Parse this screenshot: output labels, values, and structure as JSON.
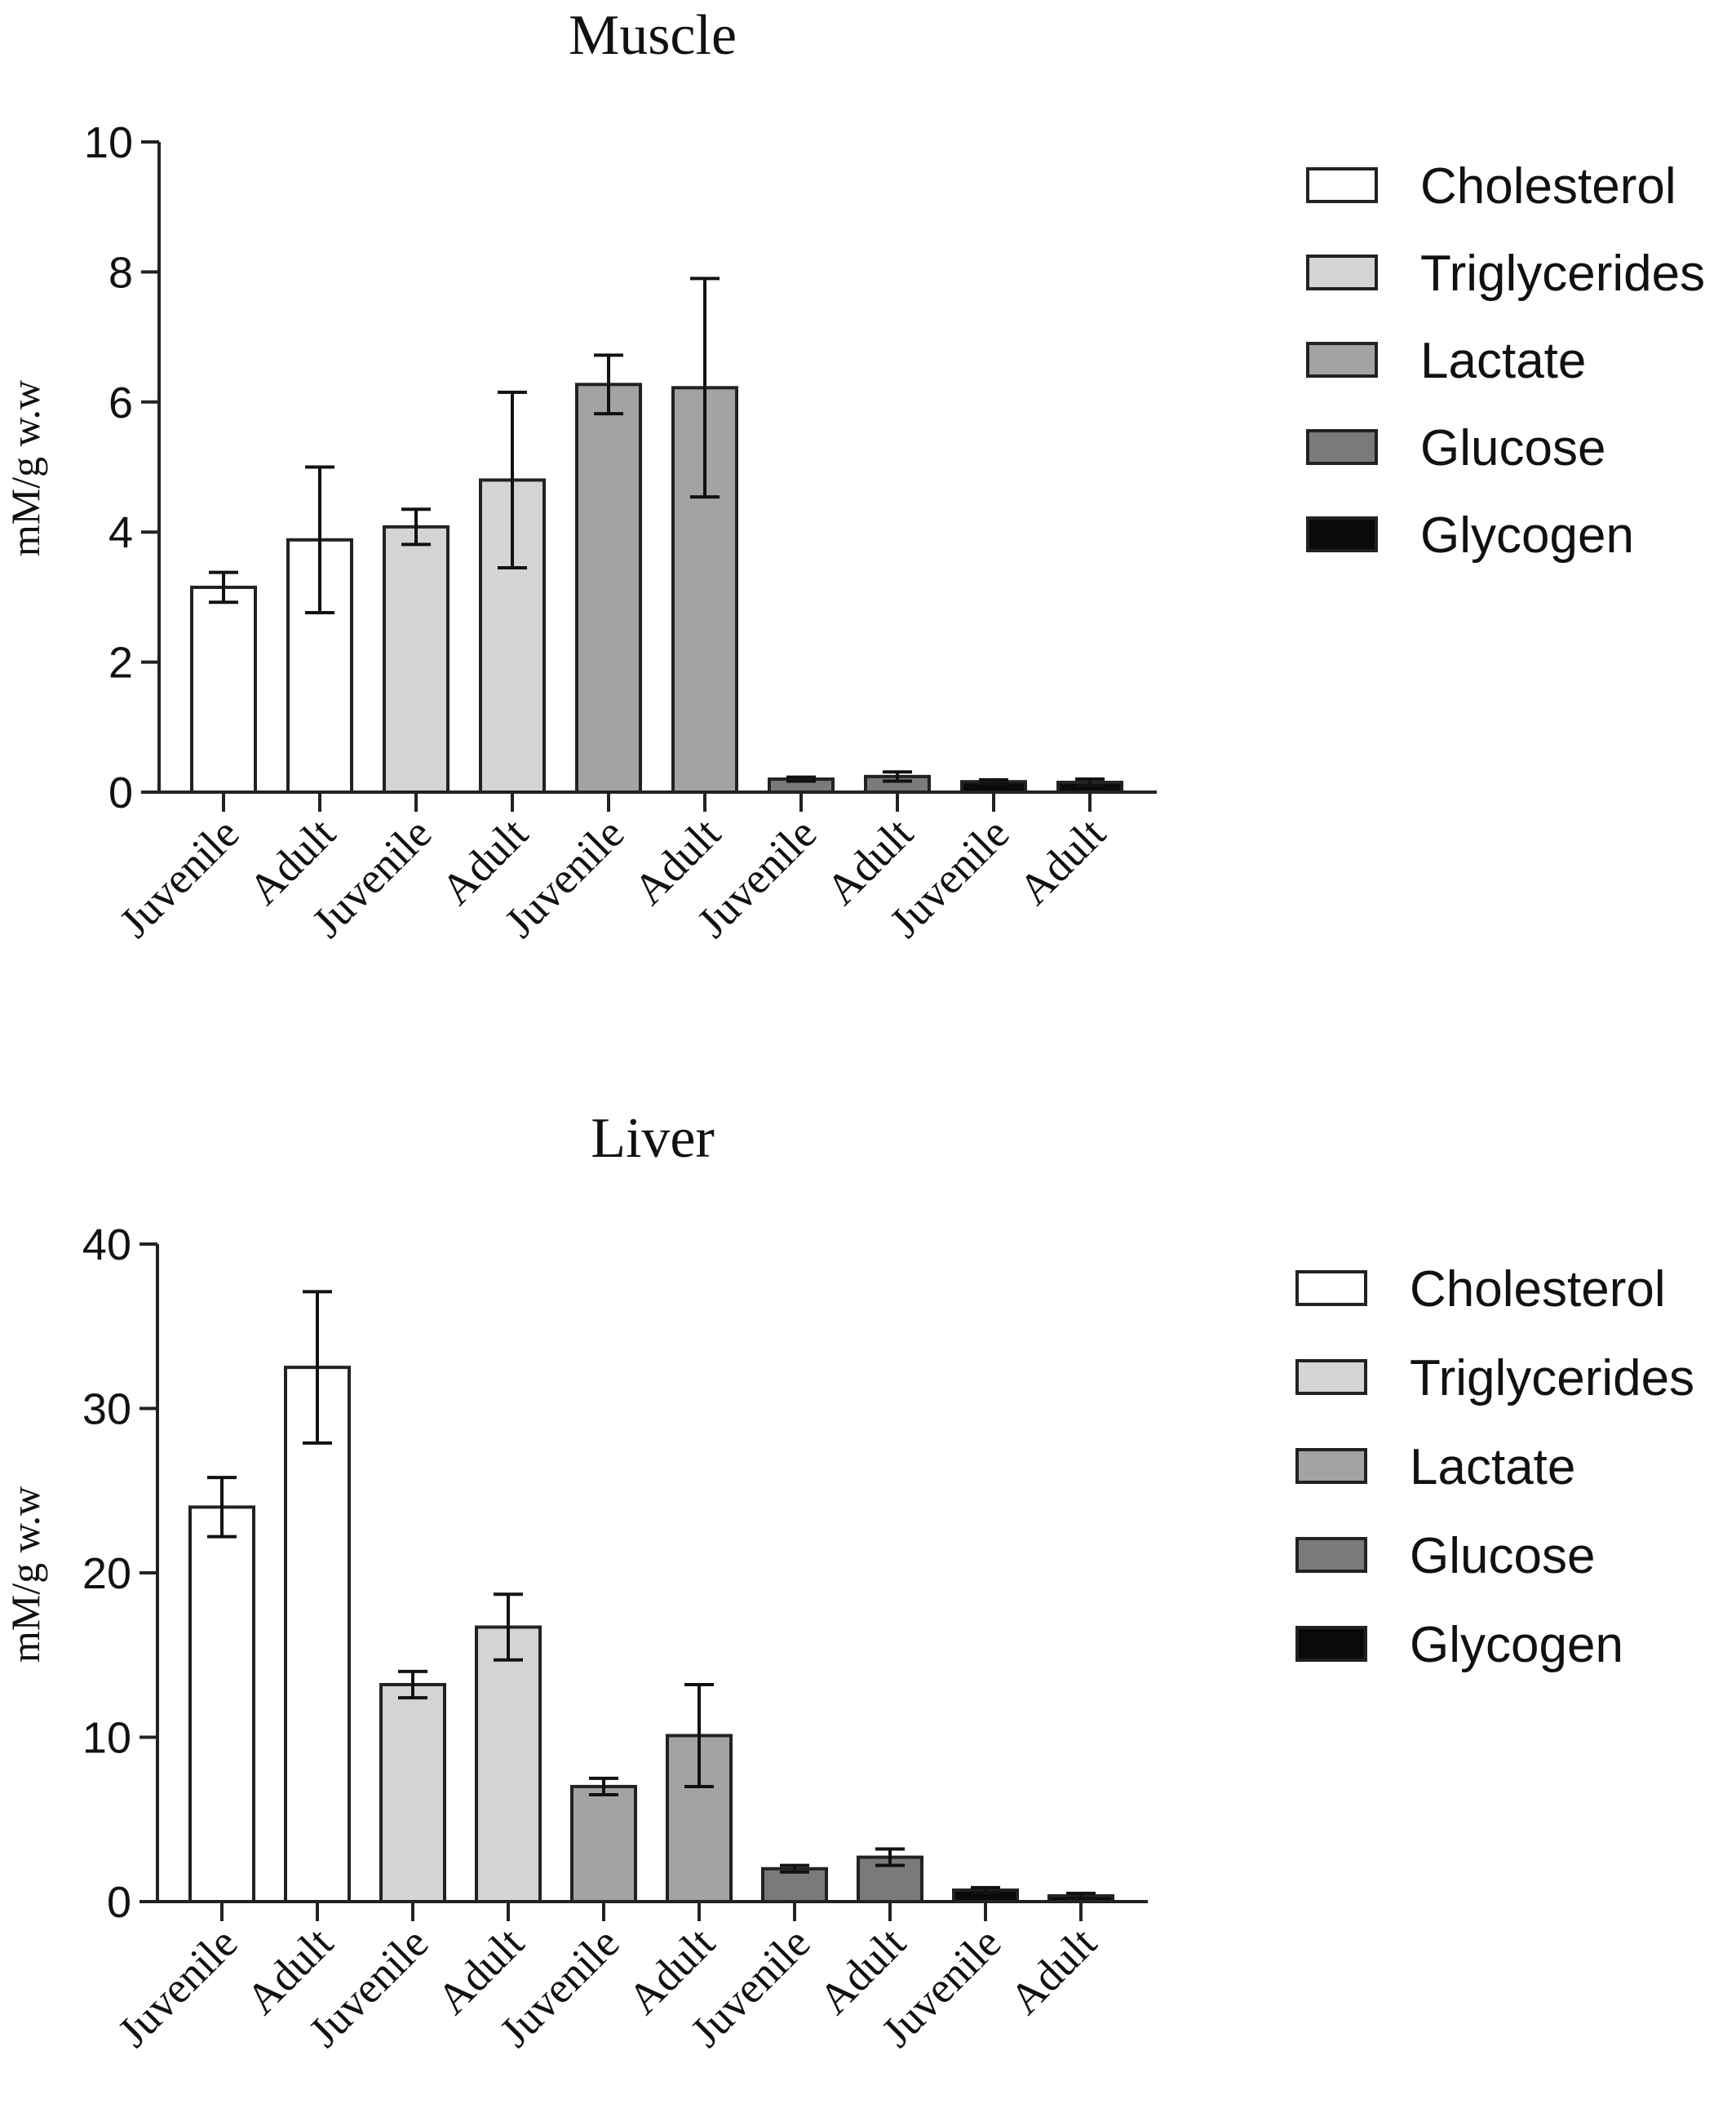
{
  "chart_data": [
    {
      "type": "bar",
      "title": "Muscle",
      "xlabel": "",
      "ylabel": "mM/g w.w",
      "ylim": [
        0,
        10
      ],
      "yticks": [
        0,
        2,
        4,
        6,
        8,
        10
      ],
      "categories": [
        "Juvenile",
        "Adult",
        "Juvenile",
        "Adult",
        "Juvenile",
        "Adult",
        "Juvenile",
        "Adult",
        "Juvenile",
        "Adult"
      ],
      "groups": [
        "Cholesterol",
        "Cholesterol",
        "Triglycerides",
        "Triglycerides",
        "Lactate",
        "Lactate",
        "Glucose",
        "Glucose",
        "Glycogen",
        "Glycogen"
      ],
      "values": [
        3.15,
        3.88,
        4.08,
        4.8,
        6.27,
        6.22,
        0.2,
        0.24,
        0.16,
        0.15
      ],
      "errors": [
        0.23,
        1.12,
        0.27,
        1.35,
        0.45,
        1.68,
        0.03,
        0.07,
        0.03,
        0.05
      ],
      "legend": [
        "Cholesterol",
        "Triglycerides",
        "Lactate",
        "Glucose",
        "Glycogen"
      ],
      "legend_position": "right",
      "colors": {
        "Cholesterol": "#ffffff",
        "Triglycerides": "#d4d4d4",
        "Lactate": "#a3a3a3",
        "Glucose": "#7a7a7a",
        "Glycogen": "#0a0a0a"
      },
      "grid": false
    },
    {
      "type": "bar",
      "title": "Liver",
      "xlabel": "",
      "ylabel": "mM/g w.w",
      "ylim": [
        0,
        40
      ],
      "yticks": [
        0,
        10,
        20,
        30,
        40
      ],
      "categories": [
        "Juvenile",
        "Adult",
        "Juvenile",
        "Adult",
        "Juvenile",
        "Adult",
        "Juvenile",
        "Adult",
        "Juvenile",
        "Adult"
      ],
      "groups": [
        "Cholesterol",
        "Cholesterol",
        "Triglycerides",
        "Triglycerides",
        "Lactate",
        "Lactate",
        "Glucose",
        "Glucose",
        "Glycogen",
        "Glycogen"
      ],
      "values": [
        24.0,
        32.5,
        13.2,
        16.7,
        7.0,
        10.1,
        2.0,
        2.7,
        0.7,
        0.35
      ],
      "errors": [
        1.8,
        4.6,
        0.8,
        2.0,
        0.5,
        3.1,
        0.2,
        0.5,
        0.15,
        0.15
      ],
      "legend": [
        "Cholesterol",
        "Triglycerides",
        "Lactate",
        "Glucose",
        "Glycogen"
      ],
      "legend_position": "right",
      "colors": {
        "Cholesterol": "#ffffff",
        "Triglycerides": "#d4d4d4",
        "Lactate": "#a3a3a3",
        "Glucose": "#7a7a7a",
        "Glycogen": "#0a0a0a"
      },
      "grid": false
    }
  ]
}
